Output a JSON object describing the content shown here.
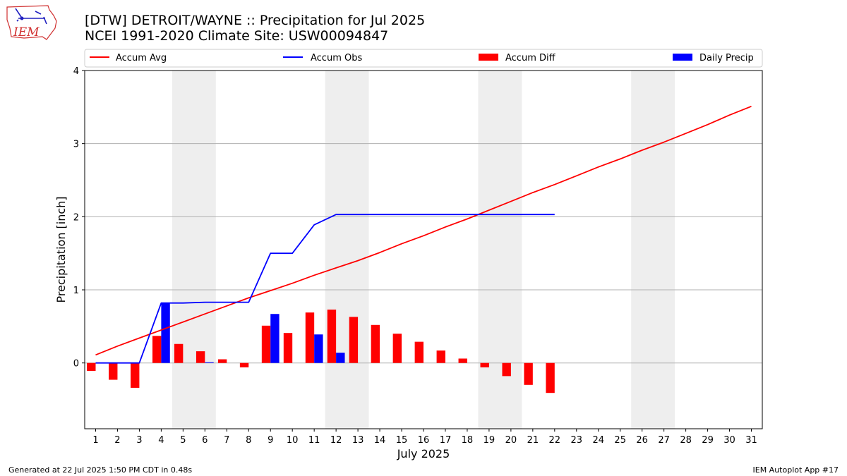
{
  "header": {
    "title_line1": "[DTW] DETROIT/WAYNE :: Precipitation for Jul 2025",
    "title_line2": "NCEI 1991-2020 Climate Site: USW00094847"
  },
  "logo": {
    "text": "IEM"
  },
  "footer": {
    "left": "Generated at 22 Jul 2025 1:50 PM CDT in 0.48s",
    "right": "IEM Autoplot App #17"
  },
  "colors": {
    "avg": "#ff0000",
    "obs": "#0000ff",
    "diff": "#ff0000",
    "daily": "#0000ff",
    "weekend": "#eeeeee",
    "grid": "#b0b0b0"
  },
  "chart_data": {
    "type": "bar",
    "xlabel": "July 2025",
    "ylabel": "Precipitation [inch]",
    "ylim": [
      -0.9,
      4.0
    ],
    "yticks": [
      0,
      1,
      2,
      3,
      4
    ],
    "xlim": [
      0.5,
      31.5
    ],
    "days": [
      1,
      2,
      3,
      4,
      5,
      6,
      7,
      8,
      9,
      10,
      11,
      12,
      13,
      14,
      15,
      16,
      17,
      18,
      19,
      20,
      21,
      22,
      23,
      24,
      25,
      26,
      27,
      28,
      29,
      30,
      31
    ],
    "weekend_spans": [
      [
        4.5,
        6.5
      ],
      [
        11.5,
        13.5
      ],
      [
        18.5,
        20.5
      ],
      [
        25.5,
        27.5
      ]
    ],
    "grid": "horizontal",
    "legend": {
      "placement": "top",
      "entries": [
        "Accum Avg",
        "Accum Obs",
        "Accum Diff",
        "Daily Precip"
      ]
    },
    "series": [
      {
        "name": "Accum Avg",
        "kind": "line",
        "x": [
          1,
          2,
          3,
          4,
          5,
          6,
          7,
          8,
          9,
          10,
          11,
          12,
          13,
          14,
          15,
          16,
          17,
          18,
          19,
          20,
          21,
          22,
          23,
          24,
          25,
          26,
          27,
          28,
          29,
          30,
          31
        ],
        "values": [
          0.11,
          0.23,
          0.34,
          0.45,
          0.56,
          0.67,
          0.78,
          0.89,
          0.99,
          1.09,
          1.2,
          1.3,
          1.4,
          1.51,
          1.63,
          1.74,
          1.86,
          1.97,
          2.09,
          2.21,
          2.33,
          2.44,
          2.56,
          2.68,
          2.79,
          2.91,
          3.02,
          3.14,
          3.26,
          3.39,
          3.51
        ]
      },
      {
        "name": "Accum Obs",
        "kind": "line",
        "x": [
          1,
          2,
          3,
          4,
          5,
          6,
          7,
          8,
          9,
          10,
          11,
          12,
          13,
          14,
          15,
          16,
          17,
          18,
          19,
          20,
          21,
          22
        ],
        "values": [
          0.0,
          0.0,
          0.0,
          0.82,
          0.82,
          0.83,
          0.83,
          0.83,
          1.5,
          1.5,
          1.89,
          2.03,
          2.03,
          2.03,
          2.03,
          2.03,
          2.03,
          2.03,
          2.03,
          2.03,
          2.03,
          2.03
        ]
      },
      {
        "name": "Accum Diff",
        "kind": "bar",
        "x": [
          1,
          2,
          3,
          4,
          5,
          6,
          7,
          8,
          9,
          10,
          11,
          12,
          13,
          14,
          15,
          16,
          17,
          18,
          19,
          20,
          21,
          22
        ],
        "values": [
          -0.11,
          -0.23,
          -0.34,
          0.37,
          0.26,
          0.16,
          0.05,
          -0.06,
          0.51,
          0.41,
          0.69,
          0.73,
          0.63,
          0.52,
          0.4,
          0.29,
          0.17,
          0.06,
          -0.06,
          -0.18,
          -0.3,
          -0.41
        ]
      },
      {
        "name": "Daily Precip",
        "kind": "bar",
        "x": [
          1,
          2,
          3,
          4,
          5,
          6,
          7,
          8,
          9,
          10,
          11,
          12,
          13,
          14,
          15,
          16,
          17,
          18,
          19,
          20,
          21,
          22
        ],
        "values": [
          0,
          0,
          0,
          0.82,
          0,
          0.01,
          0,
          0,
          0.67,
          0,
          0.39,
          0.14,
          0,
          0,
          0,
          0,
          0,
          0,
          0,
          0,
          0,
          0
        ]
      }
    ]
  }
}
